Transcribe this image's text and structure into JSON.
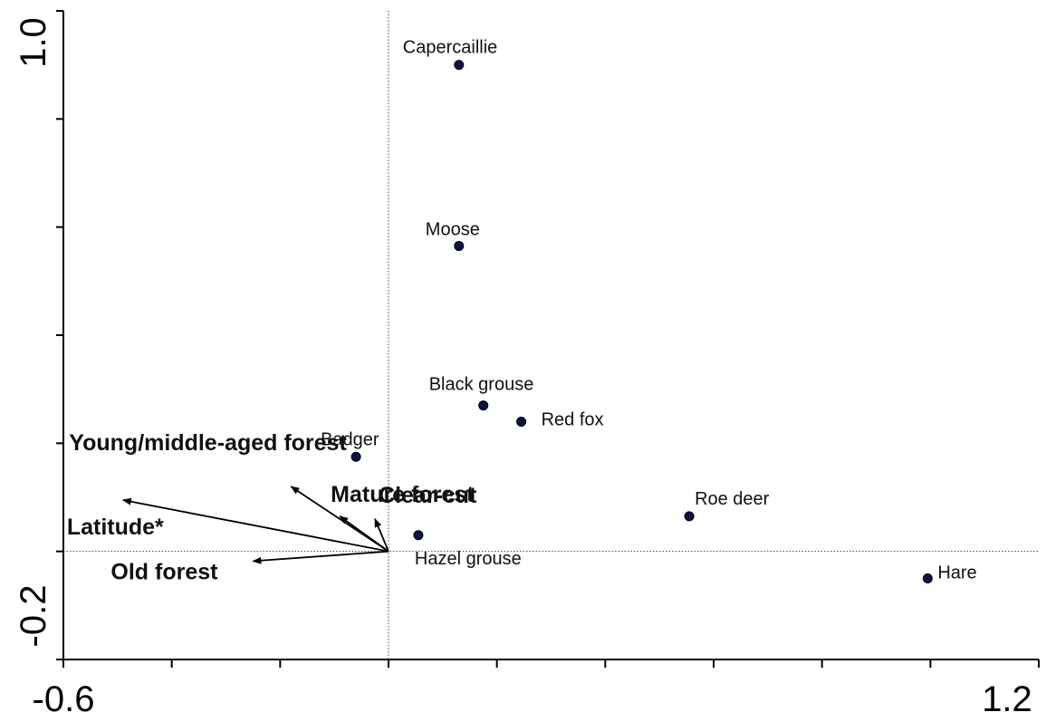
{
  "chart_data": {
    "type": "scatter",
    "subtype": "ordination-biplot",
    "title": "",
    "xlabel": "",
    "ylabel": "",
    "xlim": [
      -0.6,
      1.2
    ],
    "ylim": [
      -0.2,
      1.0
    ],
    "x_tick_labels": [
      "-0.6",
      "1.2"
    ],
    "y_tick_labels": [
      "-0.2",
      "1.0"
    ],
    "x_tick_values": [
      -0.6,
      -0.4,
      -0.2,
      0.0,
      0.2,
      0.4,
      0.6,
      0.8,
      1.0,
      1.2
    ],
    "y_tick_values": [
      -0.2,
      0.0,
      0.2,
      0.4,
      0.6,
      0.8,
      1.0
    ],
    "zero_lines": true,
    "grid": false,
    "point_color": "#0b1050",
    "species": [
      {
        "name": "Capercaillie",
        "x": 0.13,
        "y": 0.9
      },
      {
        "name": "Moose",
        "x": 0.13,
        "y": 0.565
      },
      {
        "name": "Black grouse",
        "x": 0.175,
        "y": 0.27
      },
      {
        "name": "Red fox",
        "x": 0.245,
        "y": 0.24
      },
      {
        "name": "Badger",
        "x": -0.06,
        "y": 0.175
      },
      {
        "name": "Roe deer",
        "x": 0.555,
        "y": 0.065
      },
      {
        "name": "Hazel grouse",
        "x": 0.055,
        "y": 0.03
      },
      {
        "name": "Hare",
        "x": 0.995,
        "y": -0.05
      }
    ],
    "environment_vectors": [
      {
        "name": "Young/middle-aged forest",
        "x": -0.18,
        "y": 0.12
      },
      {
        "name": "Mature forest",
        "x": -0.09,
        "y": 0.065
      },
      {
        "name": "Clear-cut",
        "x": -0.025,
        "y": 0.06
      },
      {
        "name": "Latitude*",
        "x": -0.49,
        "y": 0.095
      },
      {
        "name": "Old forest",
        "x": -0.25,
        "y": -0.018
      }
    ]
  }
}
